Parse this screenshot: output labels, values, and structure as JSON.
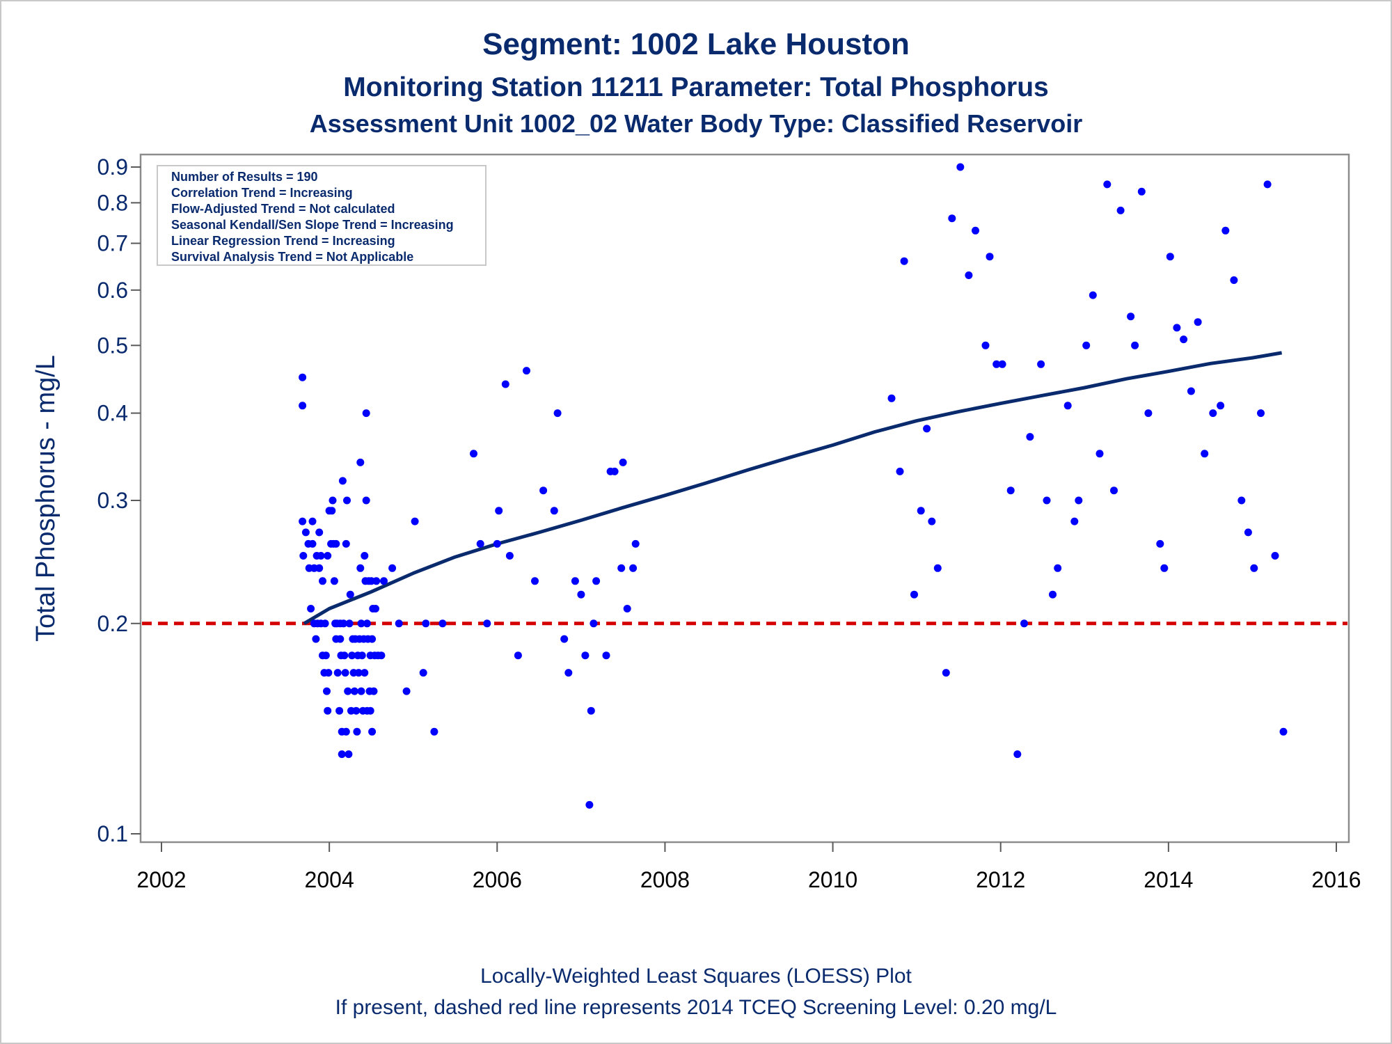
{
  "titles": {
    "line1": "Segment: 1002  Lake Houston",
    "line2": "Monitoring Station 11211 Parameter: Total Phosphorus",
    "line3": "Assessment Unit 1002_02   Water Body Type: Classified Reservoir"
  },
  "footnotes": {
    "line1": "Locally-Weighted Least Squares (LOESS) Plot",
    "line2": "If present, dashed red line represents 2014 TCEQ Screening Level: 0.20 mg/L"
  },
  "stats_box": [
    "Number of Results = 190",
    "Correlation Trend = Increasing",
    "Flow-Adjusted Trend = Not calculated",
    "Seasonal Kendall/Sen Slope Trend = Increasing",
    "Linear Regression Trend = Increasing",
    "Survival Analysis Trend = Not Applicable"
  ],
  "colors": {
    "points": "#0000ff",
    "loess": "#0a2a6e",
    "screening": "#d40000",
    "text": "#0a2a6e"
  },
  "chart_data": {
    "type": "scatter",
    "ylabel": "Total Phosphorus - mg/L",
    "xlabel": "",
    "yscale": "log",
    "xlim": [
      2002,
      2016
    ],
    "ylim": [
      0.1,
      0.9
    ],
    "xticks": [
      2002,
      2004,
      2006,
      2008,
      2010,
      2012,
      2014,
      2016
    ],
    "yticks": [
      0.1,
      0.2,
      0.3,
      0.4,
      0.5,
      0.6,
      0.7,
      0.8,
      0.9
    ],
    "ytick_labels": [
      "0.1",
      "0.2",
      "0.3",
      "0.4",
      "0.5",
      "0.6",
      "0.7",
      "0.8",
      "0.9"
    ],
    "screening_level": 0.2,
    "grid": false,
    "legend": "top-left",
    "points": [
      [
        2003.68,
        0.45
      ],
      [
        2003.68,
        0.41
      ],
      [
        2003.68,
        0.28
      ],
      [
        2003.69,
        0.25
      ],
      [
        2003.72,
        0.27
      ],
      [
        2003.75,
        0.26
      ],
      [
        2003.76,
        0.24
      ],
      [
        2003.78,
        0.21
      ],
      [
        2003.8,
        0.28
      ],
      [
        2003.8,
        0.26
      ],
      [
        2003.82,
        0.24
      ],
      [
        2003.82,
        0.2
      ],
      [
        2003.84,
        0.19
      ],
      [
        2003.85,
        0.25
      ],
      [
        2003.86,
        0.2
      ],
      [
        2003.88,
        0.27
      ],
      [
        2003.88,
        0.24
      ],
      [
        2003.9,
        0.25
      ],
      [
        2003.9,
        0.2
      ],
      [
        2003.92,
        0.23
      ],
      [
        2003.92,
        0.18
      ],
      [
        2003.94,
        0.17
      ],
      [
        2003.95,
        0.2
      ],
      [
        2003.96,
        0.18
      ],
      [
        2003.97,
        0.16
      ],
      [
        2003.98,
        0.15
      ],
      [
        2003.99,
        0.17
      ],
      [
        2003.98,
        0.25
      ],
      [
        2004.0,
        0.29
      ],
      [
        2004.02,
        0.26
      ],
      [
        2004.03,
        0.29
      ],
      [
        2004.04,
        0.3
      ],
      [
        2004.05,
        0.26
      ],
      [
        2004.06,
        0.23
      ],
      [
        2004.07,
        0.2
      ],
      [
        2004.08,
        0.26
      ],
      [
        2004.08,
        0.19
      ],
      [
        2004.09,
        0.2
      ],
      [
        2004.1,
        0.17
      ],
      [
        2004.12,
        0.15
      ],
      [
        2004.13,
        0.19
      ],
      [
        2004.13,
        0.2
      ],
      [
        2004.14,
        0.18
      ],
      [
        2004.15,
        0.14
      ],
      [
        2004.15,
        0.13
      ],
      [
        2004.16,
        0.32
      ],
      [
        2004.17,
        0.2
      ],
      [
        2004.18,
        0.18
      ],
      [
        2004.19,
        0.17
      ],
      [
        2004.2,
        0.26
      ],
      [
        2004.2,
        0.14
      ],
      [
        2004.21,
        0.3
      ],
      [
        2004.22,
        0.16
      ],
      [
        2004.23,
        0.13
      ],
      [
        2004.24,
        0.2
      ],
      [
        2004.25,
        0.22
      ],
      [
        2004.26,
        0.15
      ],
      [
        2004.27,
        0.18
      ],
      [
        2004.28,
        0.19
      ],
      [
        2004.29,
        0.17
      ],
      [
        2004.3,
        0.16
      ],
      [
        2004.31,
        0.19
      ],
      [
        2004.32,
        0.15
      ],
      [
        2004.33,
        0.14
      ],
      [
        2004.34,
        0.18
      ],
      [
        2004.35,
        0.17
      ],
      [
        2004.36,
        0.19
      ],
      [
        2004.37,
        0.34
      ],
      [
        2004.37,
        0.24
      ],
      [
        2004.38,
        0.16
      ],
      [
        2004.38,
        0.2
      ],
      [
        2004.39,
        0.18
      ],
      [
        2004.4,
        0.15
      ],
      [
        2004.41,
        0.19
      ],
      [
        2004.42,
        0.25
      ],
      [
        2004.42,
        0.17
      ],
      [
        2004.43,
        0.23
      ],
      [
        2004.44,
        0.4
      ],
      [
        2004.44,
        0.3
      ],
      [
        2004.45,
        0.2
      ],
      [
        2004.45,
        0.15
      ],
      [
        2004.46,
        0.19
      ],
      [
        2004.47,
        0.23
      ],
      [
        2004.48,
        0.16
      ],
      [
        2004.49,
        0.18
      ],
      [
        2004.49,
        0.15
      ],
      [
        2004.5,
        0.23
      ],
      [
        2004.51,
        0.19
      ],
      [
        2004.51,
        0.14
      ],
      [
        2004.52,
        0.21
      ],
      [
        2004.53,
        0.16
      ],
      [
        2004.54,
        0.18
      ],
      [
        2004.55,
        0.21
      ],
      [
        2004.56,
        0.23
      ],
      [
        2004.58,
        0.18
      ],
      [
        2004.62,
        0.18
      ],
      [
        2004.65,
        0.23
      ],
      [
        2004.75,
        0.24
      ],
      [
        2004.83,
        0.2
      ],
      [
        2004.92,
        0.16
      ],
      [
        2005.02,
        0.28
      ],
      [
        2005.12,
        0.17
      ],
      [
        2005.15,
        0.2
      ],
      [
        2005.25,
        0.14
      ],
      [
        2005.35,
        0.2
      ],
      [
        2005.72,
        0.35
      ],
      [
        2005.8,
        0.26
      ],
      [
        2005.88,
        0.2
      ],
      [
        2006.0,
        0.26
      ],
      [
        2006.02,
        0.29
      ],
      [
        2006.1,
        0.44
      ],
      [
        2006.15,
        0.25
      ],
      [
        2006.25,
        0.18
      ],
      [
        2006.35,
        0.46
      ],
      [
        2006.45,
        0.23
      ],
      [
        2006.55,
        0.31
      ],
      [
        2006.68,
        0.29
      ],
      [
        2006.72,
        0.4
      ],
      [
        2006.8,
        0.19
      ],
      [
        2006.85,
        0.17
      ],
      [
        2006.93,
        0.23
      ],
      [
        2007.0,
        0.22
      ],
      [
        2007.05,
        0.18
      ],
      [
        2007.1,
        0.11
      ],
      [
        2007.12,
        0.15
      ],
      [
        2007.15,
        0.2
      ],
      [
        2007.18,
        0.23
      ],
      [
        2007.3,
        0.18
      ],
      [
        2007.35,
        0.33
      ],
      [
        2007.4,
        0.33
      ],
      [
        2007.48,
        0.24
      ],
      [
        2007.5,
        0.34
      ],
      [
        2007.55,
        0.21
      ],
      [
        2007.62,
        0.24
      ],
      [
        2007.65,
        0.26
      ],
      [
        2010.7,
        0.42
      ],
      [
        2010.8,
        0.33
      ],
      [
        2010.85,
        0.66
      ],
      [
        2010.97,
        0.22
      ],
      [
        2011.05,
        0.29
      ],
      [
        2011.12,
        0.38
      ],
      [
        2011.18,
        0.28
      ],
      [
        2011.25,
        0.24
      ],
      [
        2011.35,
        0.17
      ],
      [
        2011.42,
        0.76
      ],
      [
        2011.52,
        0.9
      ],
      [
        2011.62,
        0.63
      ],
      [
        2011.7,
        0.73
      ],
      [
        2011.82,
        0.5
      ],
      [
        2011.87,
        0.67
      ],
      [
        2011.95,
        0.47
      ],
      [
        2012.02,
        0.47
      ],
      [
        2012.12,
        0.31
      ],
      [
        2012.2,
        0.13
      ],
      [
        2012.28,
        0.2
      ],
      [
        2012.35,
        0.37
      ],
      [
        2012.48,
        0.47
      ],
      [
        2012.55,
        0.3
      ],
      [
        2012.62,
        0.22
      ],
      [
        2012.68,
        0.24
      ],
      [
        2012.8,
        0.41
      ],
      [
        2012.88,
        0.28
      ],
      [
        2012.93,
        0.3
      ],
      [
        2013.02,
        0.5
      ],
      [
        2013.1,
        0.59
      ],
      [
        2013.18,
        0.35
      ],
      [
        2013.27,
        0.85
      ],
      [
        2013.35,
        0.31
      ],
      [
        2013.43,
        0.78
      ],
      [
        2013.55,
        0.55
      ],
      [
        2013.6,
        0.5
      ],
      [
        2013.68,
        0.83
      ],
      [
        2013.76,
        0.4
      ],
      [
        2013.9,
        0.26
      ],
      [
        2013.95,
        0.24
      ],
      [
        2014.02,
        0.67
      ],
      [
        2014.1,
        0.53
      ],
      [
        2014.18,
        0.51
      ],
      [
        2014.27,
        0.43
      ],
      [
        2014.35,
        0.54
      ],
      [
        2014.43,
        0.35
      ],
      [
        2014.53,
        0.4
      ],
      [
        2014.62,
        0.41
      ],
      [
        2014.68,
        0.73
      ],
      [
        2014.78,
        0.62
      ],
      [
        2014.87,
        0.3
      ],
      [
        2014.95,
        0.27
      ],
      [
        2015.02,
        0.24
      ],
      [
        2015.1,
        0.4
      ],
      [
        2015.18,
        0.85
      ],
      [
        2015.27,
        0.25
      ],
      [
        2015.37,
        0.14
      ]
    ],
    "loess_curve": [
      [
        2003.7,
        0.2
      ],
      [
        2004.0,
        0.21
      ],
      [
        2004.5,
        0.222
      ],
      [
        2005.0,
        0.236
      ],
      [
        2005.5,
        0.249
      ],
      [
        2006.0,
        0.26
      ],
      [
        2006.5,
        0.27
      ],
      [
        2007.0,
        0.281
      ],
      [
        2007.5,
        0.293
      ],
      [
        2008.0,
        0.305
      ],
      [
        2008.5,
        0.318
      ],
      [
        2009.0,
        0.332
      ],
      [
        2009.5,
        0.346
      ],
      [
        2010.0,
        0.36
      ],
      [
        2010.5,
        0.376
      ],
      [
        2011.0,
        0.39
      ],
      [
        2011.5,
        0.402
      ],
      [
        2012.0,
        0.413
      ],
      [
        2012.5,
        0.424
      ],
      [
        2013.0,
        0.435
      ],
      [
        2013.5,
        0.448
      ],
      [
        2014.0,
        0.459
      ],
      [
        2014.5,
        0.471
      ],
      [
        2015.0,
        0.48
      ],
      [
        2015.35,
        0.488
      ]
    ]
  }
}
